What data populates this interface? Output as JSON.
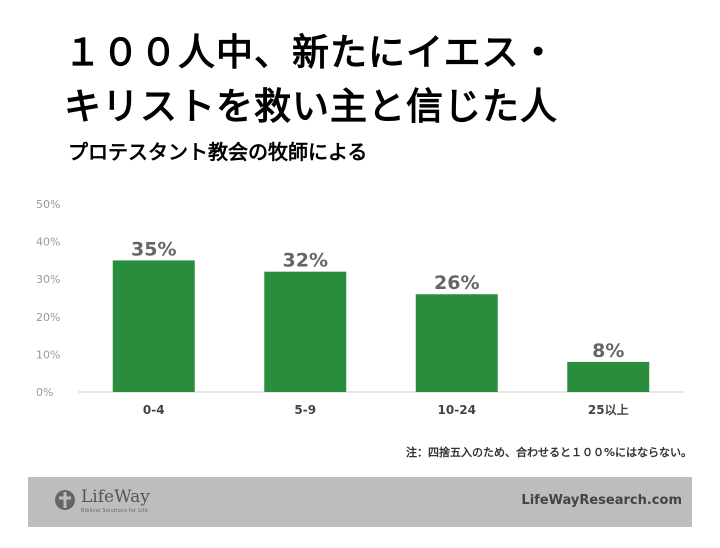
{
  "title": "１００人中、新たにイエス・\nキリストを救い主と信じた人",
  "subtitle": "プロテスタント教会の牧師による",
  "note": "注：四捨五入のため、合わせると１００%にはならない。",
  "footer": {
    "logo_name": "LifeWay",
    "logo_tagline": "Biblical Solutions for Life",
    "site": "LifeWayResearch.com"
  },
  "colors": {
    "bar": "#2a8d3e",
    "label": "#666666",
    "axis": "#999999",
    "footer_bg": "#bdbdbd"
  },
  "chart_data": {
    "type": "bar",
    "categories": [
      "0-4",
      "5-9",
      "10-24",
      "25以上"
    ],
    "values": [
      35,
      32,
      26,
      8
    ],
    "value_labels": [
      "35%",
      "32%",
      "26%",
      "8%"
    ],
    "y_ticks": [
      "0%",
      "10%",
      "20%",
      "30%",
      "40%",
      "50%"
    ],
    "ylim": [
      0,
      50
    ],
    "grid": false
  }
}
